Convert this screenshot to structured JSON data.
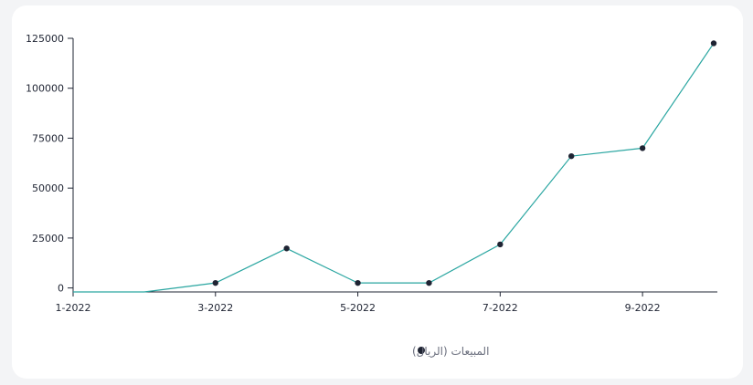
{
  "chart_data": {
    "type": "line",
    "x": [
      "1-2022",
      "2-2022",
      "3-2022",
      "4-2022",
      "5-2022",
      "6-2022",
      "7-2022",
      "8-2022",
      "9-2022",
      "10-2022"
    ],
    "x_tick_labels": [
      "1-2022",
      "3-2022",
      "5-2022",
      "7-2022",
      "9-2022"
    ],
    "y_ticks": [
      0,
      25000,
      50000,
      75000,
      100000,
      125000
    ],
    "ylim": [
      -2000,
      125000
    ],
    "series": [
      {
        "name": "المبيعات (الريال)",
        "values": [
          -2000,
          -2000,
          2500,
          19800,
          2500,
          2500,
          21800,
          66000,
          70000,
          122500
        ],
        "markers": [
          false,
          false,
          true,
          true,
          true,
          true,
          true,
          true,
          true,
          true
        ]
      }
    ],
    "colors": {
      "line": "#2aa6a1",
      "marker": "#1f2433",
      "axis": "#1f2433"
    },
    "legend_position": "bottom-center"
  }
}
